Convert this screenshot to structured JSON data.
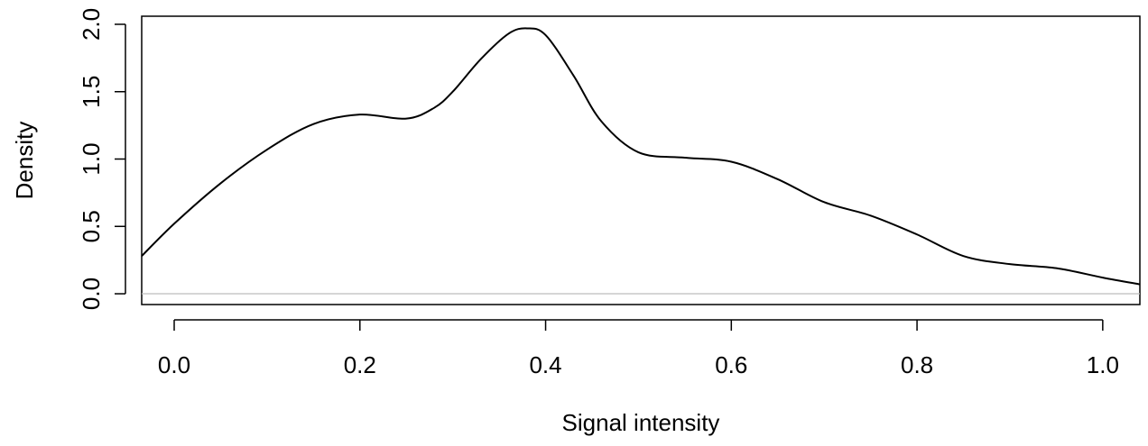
{
  "chart_data": {
    "type": "line",
    "title": "",
    "xlabel": "Signal intensity",
    "ylabel": "Density",
    "xlim": [
      -0.035,
      1.04
    ],
    "ylim": [
      -0.08,
      2.06
    ],
    "x_ticks": [
      0.0,
      0.2,
      0.4,
      0.6,
      0.8,
      1.0
    ],
    "x_tick_labels": [
      "0.0",
      "0.2",
      "0.4",
      "0.6",
      "0.8",
      "1.0"
    ],
    "y_ticks": [
      0.0,
      0.5,
      1.0,
      1.5,
      2.0
    ],
    "y_tick_labels": [
      "0.0",
      "0.5",
      "1.0",
      "1.5",
      "2.0"
    ],
    "reference_line": {
      "y": 0,
      "color": "#bebebe"
    },
    "grid": false,
    "legend": false,
    "line_color": "#000000",
    "series": [
      {
        "x": [
          -0.035,
          0.0,
          0.05,
          0.1,
          0.15,
          0.2,
          0.25,
          0.28,
          0.3,
          0.33,
          0.36,
          0.38,
          0.4,
          0.43,
          0.46,
          0.5,
          0.55,
          0.6,
          0.65,
          0.7,
          0.75,
          0.8,
          0.85,
          0.9,
          0.95,
          1.0,
          1.04
        ],
        "y": [
          0.28,
          0.52,
          0.82,
          1.07,
          1.26,
          1.33,
          1.3,
          1.38,
          1.5,
          1.74,
          1.93,
          1.97,
          1.92,
          1.62,
          1.28,
          1.05,
          1.01,
          0.98,
          0.85,
          0.68,
          0.58,
          0.44,
          0.28,
          0.22,
          0.19,
          0.12,
          0.07
        ]
      }
    ]
  }
}
